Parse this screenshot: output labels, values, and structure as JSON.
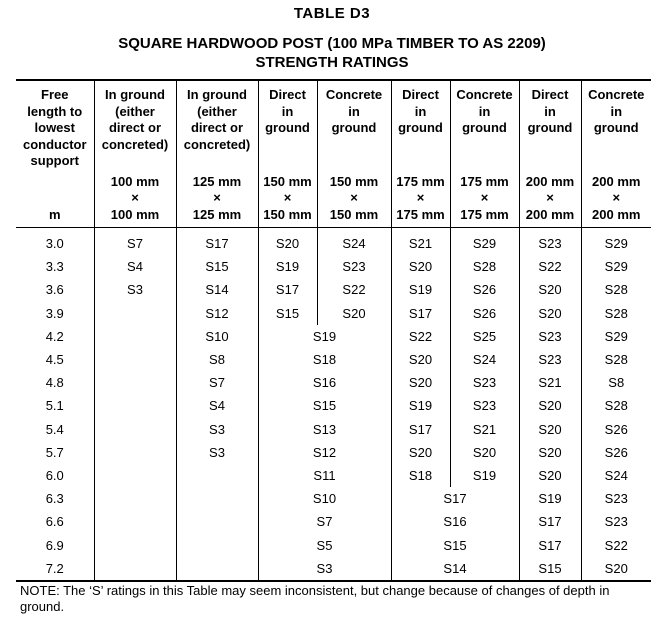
{
  "title": "TABLE   D3",
  "subtitle1": "SQUARE HARDWOOD POST (100 MPa TIMBER TO AS 2209)",
  "subtitle2": "STRENGTH RATINGS",
  "headers": [
    {
      "desc": [
        "Free",
        "length to",
        "lowest",
        "conductor",
        "support"
      ],
      "size": [
        "m"
      ]
    },
    {
      "desc": [
        "In ground",
        "(either",
        "direct or",
        "concreted)"
      ],
      "size": [
        "100 mm",
        "×",
        "100 mm"
      ]
    },
    {
      "desc": [
        "In ground",
        "(either",
        "direct or",
        "concreted)"
      ],
      "size": [
        "125 mm",
        "×",
        "125 mm"
      ]
    },
    {
      "desc": [
        "Direct",
        "in",
        "ground"
      ],
      "size": [
        "150 mm",
        "×",
        "150 mm"
      ]
    },
    {
      "desc": [
        "Concrete",
        "in",
        "ground"
      ],
      "size": [
        "150 mm",
        "×",
        "150 mm"
      ]
    },
    {
      "desc": [
        "Direct",
        "in",
        "ground"
      ],
      "size": [
        "175 mm",
        "×",
        "175 mm"
      ]
    },
    {
      "desc": [
        "Concrete",
        "in",
        "ground"
      ],
      "size": [
        "175 mm",
        "×",
        "175 mm"
      ]
    },
    {
      "desc": [
        "Direct",
        "in",
        "ground"
      ],
      "size": [
        "200 mm",
        "×",
        "200 mm"
      ]
    },
    {
      "desc": [
        "Concrete",
        "in",
        "ground"
      ],
      "size": [
        "200 mm",
        "×",
        "200 mm"
      ]
    }
  ],
  "rows": [
    {
      "length": "3.0",
      "c100": "S7",
      "c125": "S17",
      "d150": "S20",
      "k150": "S24",
      "d175": "S21",
      "k175": "S29",
      "d200": "S23",
      "k200": "S29"
    },
    {
      "length": "3.3",
      "c100": "S4",
      "c125": "S15",
      "d150": "S19",
      "k150": "S23",
      "d175": "S20",
      "k175": "S28",
      "d200": "S22",
      "k200": "S29"
    },
    {
      "length": "3.6",
      "c100": "S3",
      "c125": "S14",
      "d150": "S17",
      "k150": "S22",
      "d175": "S19",
      "k175": "S26",
      "d200": "S20",
      "k200": "S28"
    },
    {
      "length": "3.9",
      "c100": "",
      "c125": "S12",
      "d150": "S15",
      "k150": "S20",
      "d175": "S17",
      "k175": "S26",
      "d200": "S20",
      "k200": "S28"
    },
    {
      "length": "4.2",
      "c100": "",
      "c125": "S10",
      "m150": "S19",
      "d175": "S22",
      "k175": "S25",
      "d200": "S23",
      "k200": "S29"
    },
    {
      "length": "4.5",
      "c100": "",
      "c125": "S8",
      "m150": "S18",
      "d175": "S20",
      "k175": "S24",
      "d200": "S23",
      "k200": "S28"
    },
    {
      "length": "4.8",
      "c100": "",
      "c125": "S7",
      "m150": "S16",
      "d175": "S20",
      "k175": "S23",
      "d200": "S21",
      "k200": "S8"
    },
    {
      "length": "5.1",
      "c100": "",
      "c125": "S4",
      "m150": "S15",
      "d175": "S19",
      "k175": "S23",
      "d200": "S20",
      "k200": "S28"
    },
    {
      "length": "5.4",
      "c100": "",
      "c125": "S3",
      "m150": "S13",
      "d175": "S17",
      "k175": "S21",
      "d200": "S20",
      "k200": "S26"
    },
    {
      "length": "5.7",
      "c100": "",
      "c125": "S3",
      "m150": "S12",
      "d175": "S20",
      "k175": "S20",
      "d200": "S20",
      "k200": "S26"
    },
    {
      "length": "6.0",
      "c100": "",
      "c125": "",
      "m150": "S11",
      "d175": "S18",
      "k175": "S19",
      "d200": "S20",
      "k200": "S24"
    },
    {
      "length": "6.3",
      "c100": "",
      "c125": "",
      "m150": "S10",
      "m175": "S17",
      "d200": "S19",
      "k200": "S23"
    },
    {
      "length": "6.6",
      "c100": "",
      "c125": "",
      "m150": "S7",
      "m175": "S16",
      "d200": "S17",
      "k200": "S23"
    },
    {
      "length": "6.9",
      "c100": "",
      "c125": "",
      "m150": "S5",
      "m175": "S15",
      "d200": "S17",
      "k200": "S22"
    },
    {
      "length": "7.2",
      "c100": "",
      "c125": "",
      "m150": "S3",
      "m175": "S14",
      "d200": "S15",
      "k200": "S20"
    }
  ],
  "note": "NOTE: The ‘S’ ratings in this Table may seem inconsistent, but change because of changes of depth in ground."
}
